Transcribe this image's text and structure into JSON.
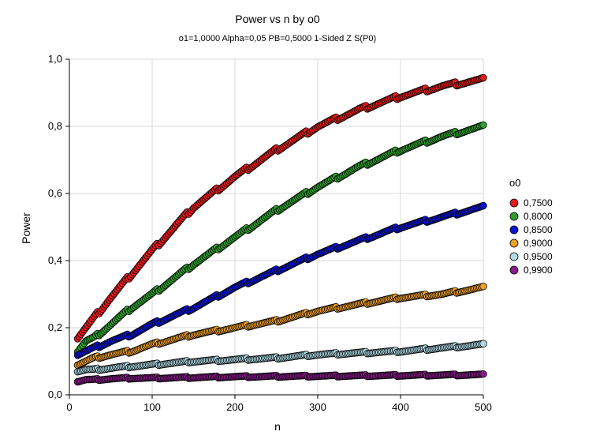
{
  "chart_data": {
    "type": "scatter",
    "title": "Power vs n by o0",
    "subtitle": "o1=1,0000 Alpha=0,05 PB=0,5000 1-Sided Z S(P0)",
    "xlabel": "n",
    "ylabel": "Power",
    "xlim": [
      0,
      500
    ],
    "ylim": [
      0,
      1
    ],
    "x_ticks": [
      "0",
      "100",
      "200",
      "300",
      "400",
      "500"
    ],
    "y_ticks": [
      "0,0",
      "0,2",
      "0,4",
      "0,6",
      "0,8",
      "1,0"
    ],
    "grid": true,
    "legend_position": "right",
    "legend_title": "o0",
    "n_range": [
      10,
      500
    ],
    "series": [
      {
        "name": "0,7500",
        "color": "#e41a1c",
        "curve": [
          [
            10,
            0.17
          ],
          [
            20,
            0.2
          ],
          [
            30,
            0.23
          ],
          [
            50,
            0.29
          ],
          [
            75,
            0.36
          ],
          [
            100,
            0.43
          ],
          [
            150,
            0.56
          ],
          [
            200,
            0.65
          ],
          [
            250,
            0.73
          ],
          [
            300,
            0.8
          ],
          [
            350,
            0.85
          ],
          [
            400,
            0.89
          ],
          [
            450,
            0.92
          ],
          [
            500,
            0.94
          ]
        ]
      },
      {
        "name": "0,8000",
        "color": "#2ca02c",
        "curve": [
          [
            10,
            0.13
          ],
          [
            20,
            0.16
          ],
          [
            30,
            0.17
          ],
          [
            50,
            0.21
          ],
          [
            75,
            0.26
          ],
          [
            100,
            0.3
          ],
          [
            150,
            0.39
          ],
          [
            200,
            0.47
          ],
          [
            250,
            0.55
          ],
          [
            300,
            0.62
          ],
          [
            350,
            0.68
          ],
          [
            400,
            0.73
          ],
          [
            450,
            0.77
          ],
          [
            500,
            0.8
          ]
        ]
      },
      {
        "name": "0,8500",
        "color": "#0a14d8",
        "curve": [
          [
            10,
            0.12
          ],
          [
            20,
            0.13
          ],
          [
            30,
            0.14
          ],
          [
            50,
            0.16
          ],
          [
            75,
            0.18
          ],
          [
            100,
            0.21
          ],
          [
            150,
            0.26
          ],
          [
            200,
            0.32
          ],
          [
            250,
            0.37
          ],
          [
            300,
            0.42
          ],
          [
            350,
            0.46
          ],
          [
            400,
            0.5
          ],
          [
            450,
            0.53
          ],
          [
            500,
            0.56
          ]
        ]
      },
      {
        "name": "0,9000",
        "color": "#f0a020",
        "curve": [
          [
            10,
            0.09
          ],
          [
            20,
            0.1
          ],
          [
            30,
            0.11
          ],
          [
            50,
            0.12
          ],
          [
            75,
            0.13
          ],
          [
            100,
            0.15
          ],
          [
            150,
            0.18
          ],
          [
            200,
            0.2
          ],
          [
            250,
            0.22
          ],
          [
            300,
            0.25
          ],
          [
            350,
            0.27
          ],
          [
            400,
            0.29
          ],
          [
            450,
            0.3
          ],
          [
            500,
            0.32
          ]
        ]
      },
      {
        "name": "0,9500",
        "color": "#b0dce8",
        "curve": [
          [
            10,
            0.07
          ],
          [
            20,
            0.075
          ],
          [
            30,
            0.075
          ],
          [
            50,
            0.08
          ],
          [
            75,
            0.085
          ],
          [
            100,
            0.09
          ],
          [
            150,
            0.1
          ],
          [
            200,
            0.105
          ],
          [
            250,
            0.11
          ],
          [
            300,
            0.12
          ],
          [
            350,
            0.125
          ],
          [
            400,
            0.13
          ],
          [
            450,
            0.14
          ],
          [
            500,
            0.15
          ]
        ]
      },
      {
        "name": "0,9900",
        "color": "#8b1a8b",
        "curve": [
          [
            10,
            0.04
          ],
          [
            20,
            0.045
          ],
          [
            30,
            0.045
          ],
          [
            50,
            0.048
          ],
          [
            75,
            0.05
          ],
          [
            100,
            0.05
          ],
          [
            150,
            0.052
          ],
          [
            200,
            0.054
          ],
          [
            250,
            0.055
          ],
          [
            300,
            0.056
          ],
          [
            350,
            0.057
          ],
          [
            400,
            0.058
          ],
          [
            450,
            0.059
          ],
          [
            500,
            0.06
          ]
        ]
      }
    ]
  }
}
